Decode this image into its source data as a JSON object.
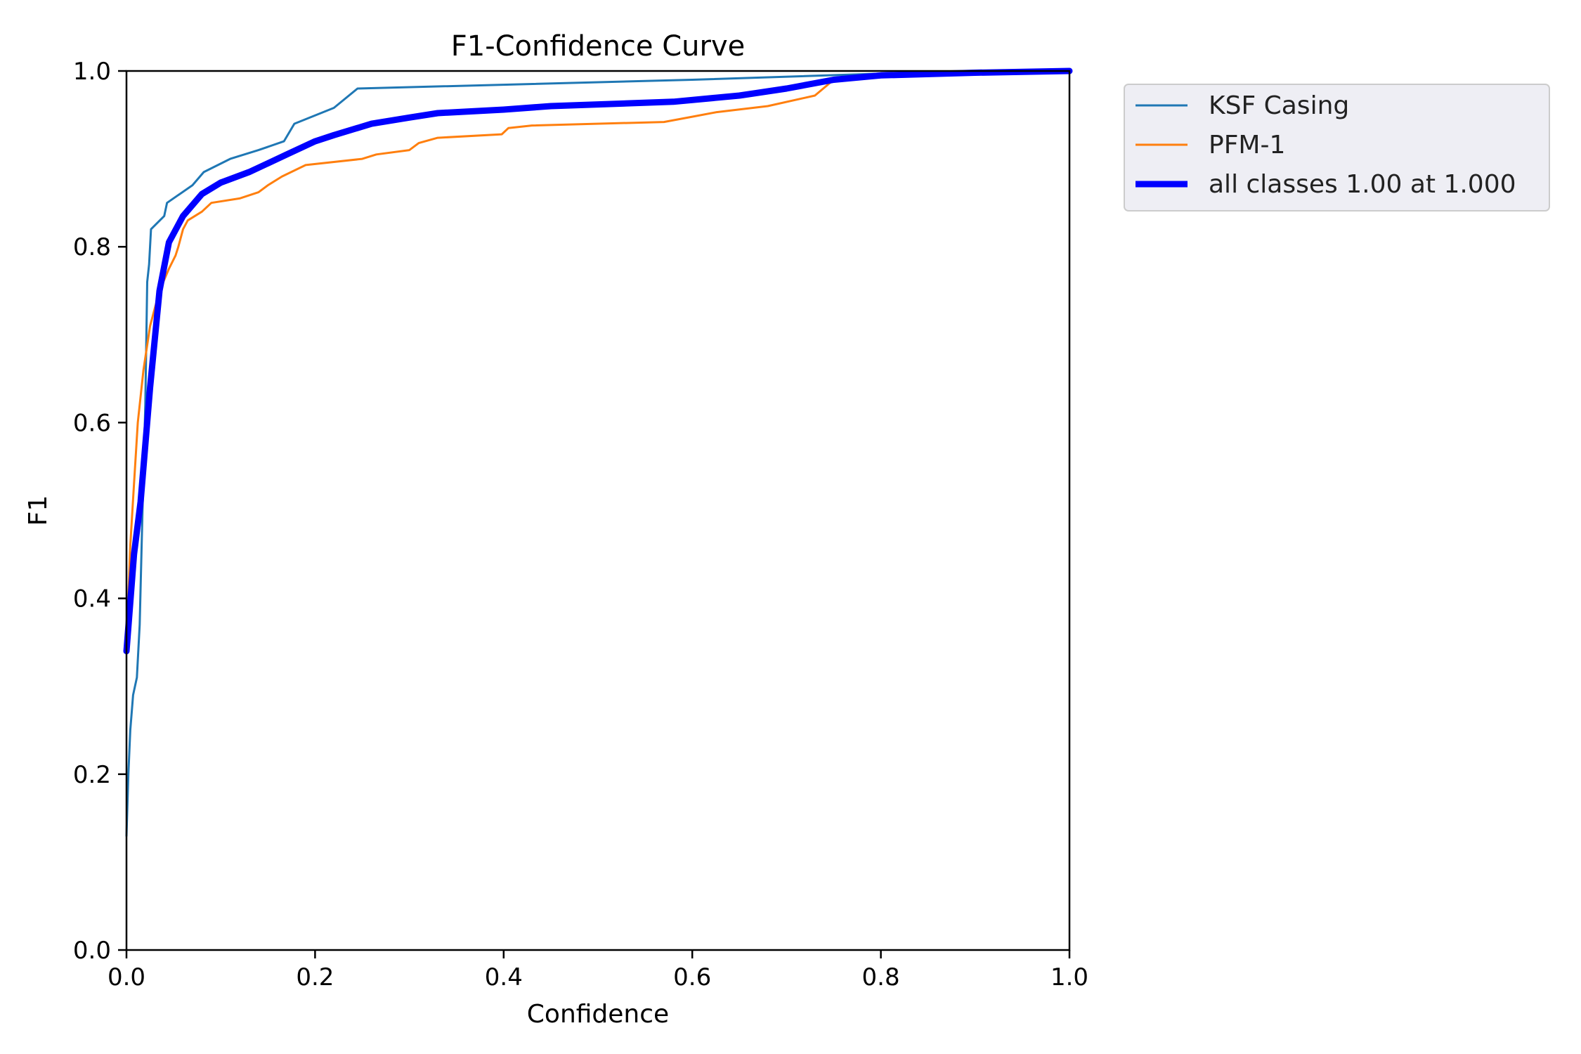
{
  "chart_data": {
    "type": "line",
    "title": "F1-Confidence Curve",
    "xlabel": "Confidence",
    "ylabel": "F1",
    "xlim": [
      0.0,
      1.0
    ],
    "ylim": [
      0.0,
      1.0
    ],
    "x_ticks": [
      "0.0",
      "0.2",
      "0.4",
      "0.6",
      "0.8",
      "1.0"
    ],
    "y_ticks": [
      "0.0",
      "0.2",
      "0.4",
      "0.6",
      "0.8",
      "1.0"
    ],
    "grid": false,
    "legend_position": "outside-top-right",
    "series": [
      {
        "name": "KSF Casing",
        "color": "#1f77b4",
        "line_width": "thin",
        "points": [
          [
            0.0,
            0.13
          ],
          [
            0.002,
            0.2
          ],
          [
            0.004,
            0.25
          ],
          [
            0.007,
            0.29
          ],
          [
            0.011,
            0.31
          ],
          [
            0.014,
            0.37
          ],
          [
            0.017,
            0.5
          ],
          [
            0.02,
            0.62
          ],
          [
            0.022,
            0.76
          ],
          [
            0.024,
            0.78
          ],
          [
            0.026,
            0.82
          ],
          [
            0.04,
            0.835
          ],
          [
            0.043,
            0.85
          ],
          [
            0.07,
            0.87
          ],
          [
            0.082,
            0.885
          ],
          [
            0.11,
            0.9
          ],
          [
            0.14,
            0.91
          ],
          [
            0.167,
            0.92
          ],
          [
            0.178,
            0.94
          ],
          [
            0.22,
            0.958
          ],
          [
            0.245,
            0.98
          ],
          [
            0.6,
            0.99
          ],
          [
            0.8,
            0.997
          ],
          [
            1.0,
            1.0
          ]
        ]
      },
      {
        "name": "PFM-1",
        "color": "#ff7f0e",
        "line_width": "thin",
        "points": [
          [
            0.0,
            0.34
          ],
          [
            0.004,
            0.46
          ],
          [
            0.008,
            0.53
          ],
          [
            0.012,
            0.6
          ],
          [
            0.018,
            0.66
          ],
          [
            0.025,
            0.71
          ],
          [
            0.035,
            0.75
          ],
          [
            0.045,
            0.775
          ],
          [
            0.052,
            0.79
          ],
          [
            0.055,
            0.8
          ],
          [
            0.06,
            0.82
          ],
          [
            0.065,
            0.83
          ],
          [
            0.08,
            0.84
          ],
          [
            0.09,
            0.85
          ],
          [
            0.12,
            0.855
          ],
          [
            0.14,
            0.862
          ],
          [
            0.15,
            0.87
          ],
          [
            0.165,
            0.88
          ],
          [
            0.19,
            0.893
          ],
          [
            0.25,
            0.9
          ],
          [
            0.265,
            0.905
          ],
          [
            0.3,
            0.91
          ],
          [
            0.31,
            0.918
          ],
          [
            0.33,
            0.924
          ],
          [
            0.398,
            0.928
          ],
          [
            0.405,
            0.935
          ],
          [
            0.43,
            0.938
          ],
          [
            0.57,
            0.942
          ],
          [
            0.6,
            0.948
          ],
          [
            0.625,
            0.953
          ],
          [
            0.68,
            0.96
          ],
          [
            0.73,
            0.972
          ],
          [
            0.75,
            0.99
          ],
          [
            0.8,
            0.995
          ],
          [
            1.0,
            1.0
          ]
        ]
      },
      {
        "name": "all classes 1.00 at 1.000",
        "color": "#0000ff",
        "line_width": "thick",
        "points": [
          [
            0.0,
            0.34
          ],
          [
            0.008,
            0.45
          ],
          [
            0.015,
            0.51
          ],
          [
            0.025,
            0.64
          ],
          [
            0.035,
            0.75
          ],
          [
            0.045,
            0.805
          ],
          [
            0.06,
            0.835
          ],
          [
            0.08,
            0.86
          ],
          [
            0.1,
            0.873
          ],
          [
            0.13,
            0.885
          ],
          [
            0.15,
            0.895
          ],
          [
            0.17,
            0.905
          ],
          [
            0.2,
            0.92
          ],
          [
            0.22,
            0.927
          ],
          [
            0.26,
            0.94
          ],
          [
            0.3,
            0.947
          ],
          [
            0.33,
            0.952
          ],
          [
            0.4,
            0.956
          ],
          [
            0.45,
            0.96
          ],
          [
            0.58,
            0.965
          ],
          [
            0.65,
            0.972
          ],
          [
            0.7,
            0.98
          ],
          [
            0.75,
            0.99
          ],
          [
            0.8,
            0.995
          ],
          [
            0.9,
            0.998
          ],
          [
            1.0,
            1.0
          ]
        ]
      }
    ]
  }
}
